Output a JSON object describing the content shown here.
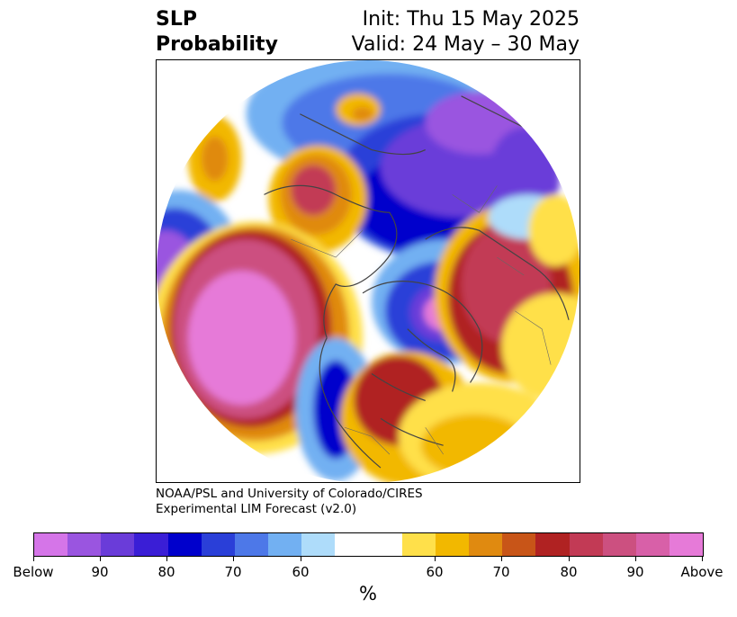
{
  "title": {
    "left_line1": "SLP",
    "left_line2": "Probability",
    "right_line1": "Init: Thu 15 May 2025",
    "right_line2": "Valid: 24 May – 30 May"
  },
  "credit": {
    "line1": "NOAA/PSL and University of Colorado/CIRES",
    "line2": "Experimental LIM Forecast (v2.0)"
  },
  "colorbar": {
    "unit": "%",
    "colors": [
      "#d575e8",
      "#9a55e0",
      "#6a3cd9",
      "#3a1ed6",
      "#0000cc",
      "#2a3fd8",
      "#4d78e8",
      "#72b0f2",
      "#aedcfa",
      "#ffffff",
      "#ffffff",
      "#ffe04a",
      "#f2b800",
      "#e08a10",
      "#c85518",
      "#b02222",
      "#c23a55",
      "#cc5080",
      "#d860a8",
      "#e67ad8"
    ],
    "ticks": [
      "Below",
      "90",
      "80",
      "70",
      "60",
      "60",
      "70",
      "80",
      "90",
      "Above"
    ]
  },
  "map": {
    "projection": "north-polar-stereographic",
    "palette": {
      "above_max": "#e67ad8",
      "above_90": "#cc5080",
      "above_80": "#b02222",
      "above_70": "#c85518",
      "above_65": "#e08a10",
      "above_60": "#f2b800",
      "above_55": "#ffe04a",
      "neutral": "#ffffff",
      "below_55": "#aedcfa",
      "below_60": "#72b0f2",
      "below_65": "#4d78e8",
      "below_70": "#2a3fd8",
      "below_80": "#0000cc",
      "below_85": "#3a1ed6",
      "below_90": "#6a3cd9",
      "below_max": "#9a55e0"
    }
  }
}
